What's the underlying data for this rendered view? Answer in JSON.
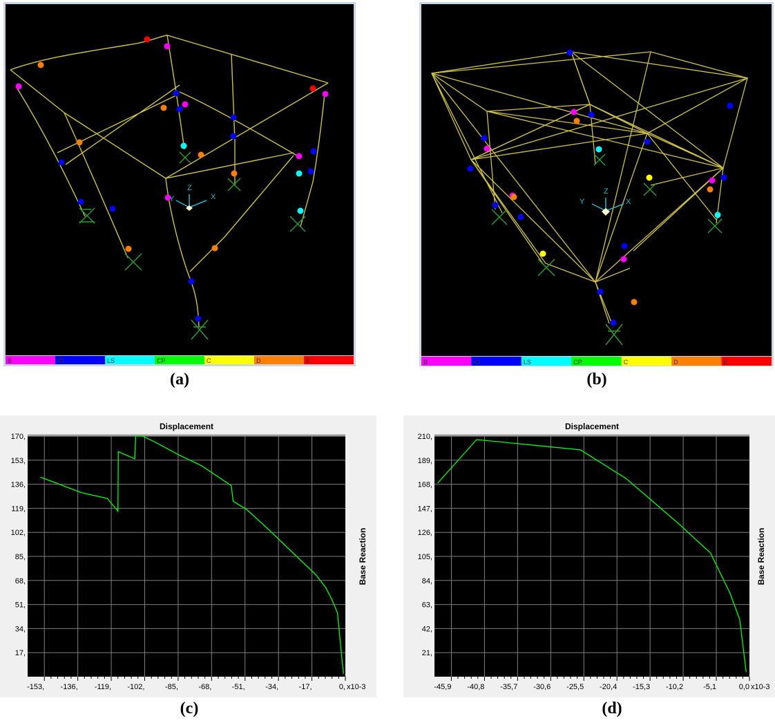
{
  "captions": [
    "(a)",
    "(b)",
    "(c)",
    "(d)"
  ],
  "legend": {
    "items": [
      {
        "label": "B",
        "color": "#ff00ff"
      },
      {
        "label": "IO",
        "color": "#0000ff"
      },
      {
        "label": "LS",
        "color": "#00ffff"
      },
      {
        "label": "CP",
        "color": "#00ff00"
      },
      {
        "label": "C",
        "color": "#ffff00"
      },
      {
        "label": "D",
        "color": "#ff8000"
      },
      {
        "label": "E",
        "color": "#ff0000"
      }
    ]
  },
  "axis_triad": {
    "x": "X",
    "y": "Y",
    "z": "Z"
  },
  "colors": {
    "frame": "#cfc24a",
    "support": "#2e9a2e",
    "curve": "#00ff00",
    "plot_bg": "#000000",
    "panel_bg": "#f0f0f0",
    "grid": "#808080"
  },
  "chart_data": [
    {
      "type": "line",
      "title": "Displacement",
      "ylabel": "Base Reaction",
      "x_multiplier_label": "x10-3",
      "xlim": [
        -161.5,
        0
      ],
      "ylim": [
        0,
        170
      ],
      "x_ticks": [
        -153,
        -136,
        -119,
        -102,
        -85,
        -68,
        -51,
        -34,
        -17,
        0
      ],
      "x_tick_labels": [
        "-153,",
        "-136,",
        "-119,",
        "-102,",
        "-85,",
        "-68,",
        "-51,",
        "-34,",
        "-17,",
        "0,"
      ],
      "y_ticks": [
        17,
        34,
        51,
        68,
        85,
        102,
        119,
        136,
        153,
        170
      ],
      "y_tick_labels": [
        "17,",
        "34,",
        "51,",
        "68,",
        "85,",
        "102,",
        "119,",
        "136,",
        "153,",
        "170,"
      ],
      "grid": true,
      "series": [
        {
          "x": [
            -155,
            -153,
            -134,
            -121,
            -115.6,
            -115.4,
            -107,
            -106.6,
            -103,
            -97,
            -85,
            -73,
            -58,
            -57,
            -50,
            -39,
            -27,
            -15,
            -10,
            -7,
            -4,
            -1
          ],
          "y": [
            141,
            140,
            130,
            126,
            117,
            159,
            154,
            170,
            170,
            166,
            157,
            149,
            135,
            124,
            118,
            104,
            88,
            72,
            63,
            55,
            45,
            2
          ]
        }
      ]
    },
    {
      "type": "line",
      "title": "Displacement",
      "ylabel": "Base Reaction",
      "x_multiplier_label": "x10-3",
      "xlim": [
        -48.5,
        0
      ],
      "ylim": [
        0,
        210
      ],
      "x_ticks": [
        -45.9,
        -40.8,
        -35.7,
        -30.6,
        -25.5,
        -20.4,
        -15.3,
        -10.2,
        -5.1,
        0
      ],
      "x_tick_labels": [
        "-45,9",
        "-40,8",
        "-35,7",
        "-30,6",
        "-25,5",
        "-20,4",
        "-15,3",
        "-10,2",
        "-5,1",
        "0,0"
      ],
      "y_ticks": [
        21,
        42,
        63,
        84,
        105,
        126,
        147,
        168,
        189,
        210
      ],
      "y_tick_labels": [
        "21,",
        "42,",
        "63,",
        "84,",
        "105,",
        "126,",
        "147,",
        "168,",
        "189,",
        "210,"
      ],
      "grid": true,
      "series": [
        {
          "x": [
            -48,
            -42,
            -33,
            -26,
            -19,
            -11,
            -6,
            -3,
            -1.5,
            -0.5
          ],
          "y": [
            169,
            207,
            202,
            198,
            173,
            134,
            108,
            73,
            50,
            4
          ]
        }
      ]
    }
  ]
}
